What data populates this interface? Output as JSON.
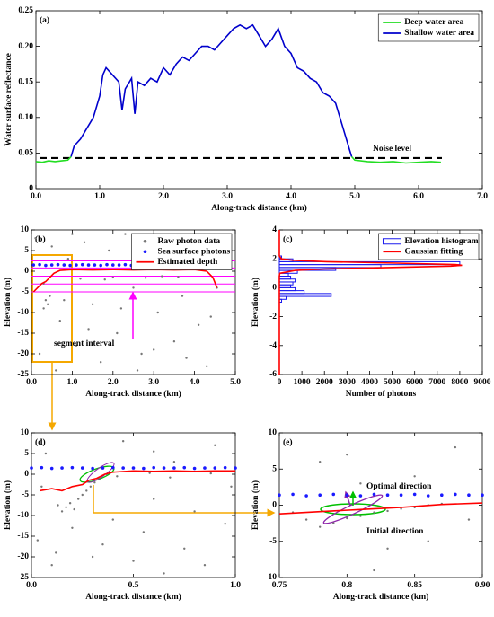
{
  "chart_data": [
    {
      "type": "line",
      "panel_label": "(a)",
      "xlabel": "Along-track distance (km)",
      "ylabel": "Water surface reflectance",
      "xlim": [
        0,
        7
      ],
      "ylim": [
        0,
        0.25
      ],
      "xticks": [
        {
          "value": 0,
          "label": "0.0"
        },
        {
          "value": 1,
          "label": "1.0"
        },
        {
          "value": 2,
          "label": "2.0"
        },
        {
          "value": 3,
          "label": "3.0"
        },
        {
          "value": 4,
          "label": "4.0"
        },
        {
          "value": 5,
          "label": "5.0"
        },
        {
          "value": 6,
          "label": "6.0"
        },
        {
          "value": 7,
          "label": "7.0"
        }
      ],
      "yticks": [
        0,
        0.05,
        {
          "value": 0.1,
          "label": "0.10"
        },
        0.15,
        {
          "value": 0.2,
          "label": "0.20"
        },
        0.25
      ],
      "legend": "upper right",
      "hlines": [
        {
          "value": 0.043,
          "label": "Noise level"
        }
      ],
      "hline_color": "#000000",
      "hline_dash": true,
      "series": [
        {
          "name": "Deep water area",
          "color": "#22dd22",
          "mode": "lines",
          "x": [
            0,
            0.1,
            0.2,
            0.3,
            0.4,
            0.5,
            0.55,
            null,
            4.95,
            5.0,
            5.2,
            5.4,
            5.6,
            5.8,
            6.0,
            6.2,
            6.35
          ],
          "values": [
            0.038,
            0.037,
            0.039,
            0.038,
            0.039,
            0.04,
            0.045,
            null,
            0.045,
            0.04,
            0.038,
            0.037,
            0.038,
            0.036,
            0.037,
            0.038,
            0.037
          ]
        },
        {
          "name": "Shallow water area",
          "color": "#0000cc",
          "mode": "lines",
          "x": [
            0.55,
            0.6,
            0.7,
            0.8,
            0.9,
            1.0,
            1.05,
            1.1,
            1.2,
            1.3,
            1.35,
            1.4,
            1.5,
            1.55,
            1.6,
            1.7,
            1.8,
            1.9,
            2.0,
            2.1,
            2.2,
            2.3,
            2.4,
            2.5,
            2.6,
            2.7,
            2.8,
            2.9,
            3.0,
            3.1,
            3.2,
            3.3,
            3.4,
            3.5,
            3.6,
            3.7,
            3.8,
            3.9,
            4.0,
            4.1,
            4.2,
            4.3,
            4.4,
            4.5,
            4.6,
            4.7,
            4.8,
            4.9,
            4.95
          ],
          "values": [
            0.045,
            0.06,
            0.07,
            0.085,
            0.1,
            0.13,
            0.16,
            0.17,
            0.16,
            0.15,
            0.11,
            0.14,
            0.155,
            0.105,
            0.15,
            0.145,
            0.155,
            0.15,
            0.17,
            0.16,
            0.175,
            0.185,
            0.18,
            0.19,
            0.2,
            0.2,
            0.195,
            0.205,
            0.215,
            0.225,
            0.23,
            0.225,
            0.23,
            0.215,
            0.2,
            0.21,
            0.225,
            0.2,
            0.19,
            0.17,
            0.165,
            0.155,
            0.15,
            0.135,
            0.13,
            0.12,
            0.09,
            0.06,
            0.045
          ]
        }
      ]
    },
    {
      "type": "scatter",
      "panel_label": "(b)",
      "xlabel": "Along-track distance (km)",
      "ylabel": "Elevation (m)",
      "xlim": [
        0,
        5
      ],
      "ylim": [
        -25,
        10
      ],
      "xticks": [
        {
          "value": 0,
          "label": "0.0"
        },
        {
          "value": 1,
          "label": "1.0"
        },
        {
          "value": 2,
          "label": "2.0"
        },
        {
          "value": 3,
          "label": "3.0"
        },
        {
          "value": 4,
          "label": "4.0"
        },
        {
          "value": 5,
          "label": "5.0"
        }
      ],
      "yticks": [
        -25,
        -20,
        -15,
        -10,
        -5,
        0,
        5,
        10
      ],
      "legend": "upper right",
      "hlines": [
        {
          "value": 2.5
        },
        {
          "value": 0.8
        },
        {
          "value": -1.2
        },
        {
          "value": -3.1
        },
        {
          "value": -5
        }
      ],
      "hline_color": "#ff00ff",
      "hline_dash": false,
      "annotations": [
        {
          "text": "segment interval",
          "color": "#000000"
        }
      ],
      "series": [
        {
          "name": "Raw photon data",
          "color": "#777777",
          "mode": "markers",
          "x": [
            0.1,
            0.3,
            0.5,
            0.7,
            0.9,
            1.1,
            1.3,
            1.5,
            1.7,
            1.9,
            2.1,
            2.3,
            2.5,
            2.7,
            2.9,
            3.1,
            3.3,
            3.5,
            3.7,
            3.9,
            4.1,
            4.3,
            4.5,
            0.2,
            0.6,
            0.8,
            1.0,
            1.4,
            1.8,
            2.2,
            2.6,
            3.0,
            3.4,
            3.8,
            4.2,
            4.4,
            0.35,
            0.4,
            0.45,
            0.3,
            4.55,
            2.0,
            3.2,
            1.2,
            2.8,
            3.6
          ],
          "values": [
            8,
            -3,
            6,
            -12,
            3,
            -18,
            7,
            -8,
            -22,
            5,
            -15,
            9,
            -4,
            -20,
            4,
            -10,
            8,
            -17,
            -6,
            6,
            -13,
            -23,
            2,
            -20,
            -24,
            -7,
            9,
            -14,
            -2,
            -9,
            -24,
            -19,
            3,
            -21,
            7,
            -11,
            -7,
            -8,
            -6,
            -9,
            -4,
            -1.5,
            -1.2,
            -1.8,
            -1.6,
            -1.4
          ]
        },
        {
          "name": "Sea surface photons",
          "color": "#1a1aff",
          "mode": "markers",
          "x": [
            0.05,
            0.2,
            0.35,
            0.5,
            0.65,
            0.8,
            0.95,
            1.1,
            1.25,
            1.4,
            1.55,
            1.7,
            1.85,
            2.0,
            2.15,
            2.3,
            2.45,
            2.6,
            2.75,
            2.9,
            3.05,
            3.2,
            3.35,
            3.5,
            3.65,
            3.8,
            3.95,
            4.1,
            4.25,
            4.4,
            4.55
          ],
          "values": [
            1.5,
            1.6,
            1.4,
            1.5,
            1.6,
            1.5,
            1.4,
            1.5,
            1.6,
            1.5,
            1.5,
            1.4,
            1.6,
            1.5,
            1.5,
            1.6,
            1.4,
            1.5,
            1.5,
            1.6,
            1.5,
            1.4,
            1.5,
            1.6,
            1.5,
            1.5,
            1.4,
            1.6,
            1.5,
            1.5,
            1.6
          ]
        },
        {
          "name": "Estimated depth",
          "color": "#ff0000",
          "mode": "lines",
          "x": [
            0.05,
            0.15,
            0.25,
            0.35,
            0.45,
            0.55,
            0.7,
            1.0,
            1.5,
            2.0,
            2.5,
            3.0,
            3.5,
            4.0,
            4.3,
            4.45,
            4.55
          ],
          "values": [
            -5,
            -4,
            -3,
            -2.5,
            -1.5,
            -0.5,
            0.2,
            0.4,
            0.3,
            0.4,
            0.3,
            0.4,
            0.3,
            0.4,
            0,
            -1.5,
            -4
          ]
        }
      ]
    },
    {
      "type": "histogram",
      "panel_label": "(c)",
      "xlabel": "Number of photons",
      "ylabel": "Elevation (m)",
      "orientation": "horizontal",
      "xlim": [
        0,
        9000
      ],
      "ylim": [
        -6,
        4
      ],
      "xticks": [
        0,
        1000,
        2000,
        3000,
        4000,
        5000,
        6000,
        7000,
        8000,
        9000
      ],
      "yticks": [
        -6,
        -4,
        -2,
        0,
        2,
        4
      ],
      "legend": "upper right",
      "series": [
        {
          "name": "Elevation histogram",
          "color": "#1a1aee",
          "mode": "bars",
          "bins": [
            -1.0,
            -0.8,
            -0.6,
            -0.4,
            -0.2,
            0,
            0.2,
            0.4,
            0.6,
            0.8,
            1.0,
            1.2,
            1.4,
            1.6,
            1.8,
            2.0,
            2.2
          ],
          "values": [
            100,
            300,
            2300,
            1100,
            700,
            500,
            600,
            700,
            500,
            400,
            800,
            2500,
            4500,
            8000,
            600,
            100
          ]
        },
        {
          "name": "Gaussian fitting",
          "color": "#ff0000",
          "mode": "lines",
          "x": [
            -6,
            0.8,
            1.0,
            1.2,
            1.3,
            1.4,
            1.5,
            1.55,
            1.6,
            1.7,
            1.8,
            1.9,
            2.0,
            2.2,
            4
          ],
          "values": [
            0,
            0,
            20,
            700,
            2000,
            4800,
            7600,
            8100,
            7800,
            5200,
            2100,
            600,
            90,
            0,
            0
          ]
        }
      ]
    },
    {
      "type": "scatter",
      "panel_label": "(d)",
      "xlabel": "Along-track distance (km)",
      "ylabel": "Elevation (m)",
      "xlim": [
        0,
        1
      ],
      "ylim": [
        -25,
        10
      ],
      "xticks": [
        {
          "value": 0,
          "label": "0.0"
        },
        0.5,
        {
          "value": 1,
          "label": "1.0"
        }
      ],
      "yticks": [
        -25,
        -20,
        -15,
        -10,
        -5,
        0,
        5,
        10
      ],
      "series": [
        {
          "color": "#777777",
          "mode": "markers",
          "x": [
            0.03,
            0.07,
            0.1,
            0.13,
            0.15,
            0.17,
            0.19,
            0.21,
            0.23,
            0.25,
            0.27,
            0.29,
            0.31,
            0.12,
            0.2,
            0.35,
            0.4,
            0.45,
            0.5,
            0.55,
            0.6,
            0.65,
            0.7,
            0.75,
            0.8,
            0.85,
            0.9,
            0.95,
            0.98,
            0.33,
            0.37,
            0.42,
            0.58,
            0.68,
            0.88,
            0.05,
            0.6,
            0.3
          ],
          "values": [
            -16,
            5,
            -22,
            -7.5,
            -9,
            -8,
            -7,
            -8.5,
            -6,
            -5,
            -4,
            -3,
            -2,
            -19,
            -13,
            -17,
            -11,
            8,
            -21,
            -14,
            -6,
            -24,
            3,
            -18,
            -9,
            -22,
            7,
            -12,
            -3,
            -1,
            0,
            -0.5,
            0.3,
            -0.8,
            0.2,
            -3,
            5.5,
            -20
          ]
        },
        {
          "color": "#1a1aff",
          "mode": "markers",
          "x": [
            0,
            0.05,
            0.1,
            0.15,
            0.2,
            0.25,
            0.3,
            0.35,
            0.4,
            0.45,
            0.5,
            0.55,
            0.6,
            0.65,
            0.7,
            0.75,
            0.8,
            0.85,
            0.9,
            0.95,
            1.0
          ],
          "values": [
            1.5,
            1.6,
            1.4,
            1.5,
            1.6,
            1.5,
            1.4,
            1.5,
            1.6,
            1.5,
            1.5,
            1.4,
            1.6,
            1.5,
            1.5,
            1.6,
            1.4,
            1.5,
            1.5,
            1.6,
            1.5
          ]
        },
        {
          "color": "#ff0000",
          "mode": "lines",
          "x": [
            0.04,
            0.1,
            0.15,
            0.2,
            0.25,
            0.28,
            0.32,
            0.36,
            0.4,
            0.5,
            0.6,
            0.7,
            0.8,
            0.9,
            1.0
          ],
          "values": [
            -4,
            -3.5,
            -4,
            -3,
            -2.5,
            -1.5,
            -1,
            0,
            0.5,
            0.8,
            0.7,
            0.8,
            0.7,
            0.8,
            0.8
          ]
        }
      ]
    },
    {
      "type": "scatter",
      "panel_label": "(e)",
      "xlabel": "Along-track distance (km)",
      "ylabel": "Elevation (m)",
      "xlim": [
        0.75,
        0.9
      ],
      "ylim": [
        -10,
        10
      ],
      "xticks": [
        0.75,
        0.8,
        0.85,
        {
          "value": 0.9,
          "label": "0.90"
        }
      ],
      "yticks": [
        -10,
        -5,
        0,
        5,
        10
      ],
      "annotations": [
        {
          "text": "Optimal direction",
          "color": "#8e24aa"
        },
        {
          "text": "Initial direction",
          "color": "#00c000"
        }
      ],
      "series": [
        {
          "color": "#777777",
          "mode": "markers",
          "x": [
            0.77,
            0.78,
            0.79,
            0.8,
            0.81,
            0.82,
            0.83,
            0.84,
            0.85,
            0.86,
            0.87,
            0.8,
            0.83,
            0.86,
            0.88,
            0.78,
            0.82,
            0.85,
            0.89,
            0.76,
            0.81
          ],
          "values": [
            -2,
            -3,
            -2.5,
            -1.8,
            -1.5,
            -1,
            -0.8,
            -0.5,
            -0.3,
            0,
            0.2,
            7,
            -6,
            -5,
            8,
            6,
            -9,
            4,
            -2,
            -1,
            3
          ]
        },
        {
          "color": "#1a1aff",
          "mode": "markers",
          "x": [
            0.75,
            0.76,
            0.77,
            0.78,
            0.79,
            0.8,
            0.81,
            0.82,
            0.83,
            0.84,
            0.85,
            0.86,
            0.87,
            0.88,
            0.89,
            0.9
          ],
          "values": [
            1.4,
            1.5,
            1.3,
            1.4,
            1.5,
            1.4,
            1.3,
            1.5,
            1.4,
            1.4,
            1.5,
            1.3,
            1.4,
            1.5,
            1.4,
            1.4
          ]
        },
        {
          "color": "#ff0000",
          "mode": "lines",
          "x": [
            0.75,
            0.78,
            0.81,
            0.84,
            0.87,
            0.9
          ],
          "values": [
            -1.2,
            -0.9,
            -0.6,
            -0.3,
            0.1,
            0.3
          ]
        }
      ]
    }
  ]
}
